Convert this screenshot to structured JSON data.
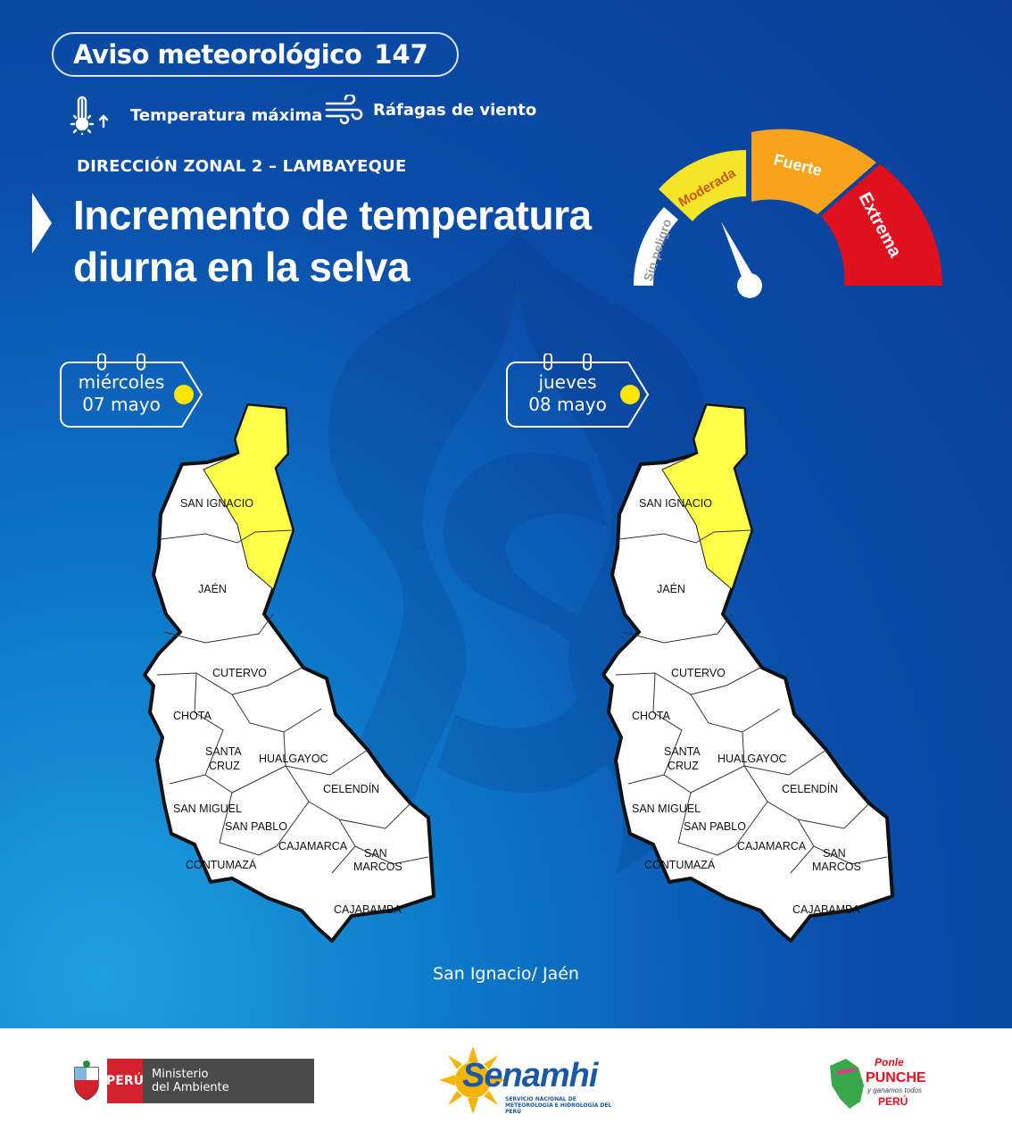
{
  "header": {
    "title": "Aviso meteorológico",
    "number": "147"
  },
  "legend": [
    {
      "icon": "thermometer-up-icon",
      "label": "Temperatura máxima"
    },
    {
      "icon": "wind-gust-icon",
      "label": "Ráfagas de viento"
    }
  ],
  "zone": "DIRECCIÓN ZONAL 2 – LAMBAYEQUE",
  "headline": {
    "line1": "Incremento de temperatura",
    "line2": "diurna en la selva"
  },
  "gauge": {
    "levels": [
      {
        "label": "Sin peligro",
        "color": "#ffffff"
      },
      {
        "label": "Moderada",
        "color": "#f5e52a"
      },
      {
        "label": "Fuerte",
        "color": "#f7a31c"
      },
      {
        "label": "Extrema",
        "color": "#e0101f"
      }
    ],
    "active_level": "Moderada"
  },
  "days": [
    {
      "weekday": "miércoles",
      "date": "07 mayo",
      "dot_color": "#ffe600"
    },
    {
      "weekday": "jueves",
      "date": "08 mayo",
      "dot_color": "#ffe600"
    }
  ],
  "map": {
    "highlight_color": "#ffff4a",
    "provinces": [
      "SAN IGNACIO",
      "JAÉN",
      "CUTERVO",
      "CHOTA",
      "SANTA",
      "CRUZ",
      "HUALGAYOC",
      "CELENDÍN",
      "SAN MIGUEL",
      "SAN PABLO",
      "CAJAMARCA",
      "SAN",
      "MARCOS",
      "CONTUMAZÁ",
      "CAJABAMBA"
    ]
  },
  "caption": "San Ignacio/ Jaén",
  "footer": {
    "peru_label": "PERÚ",
    "ministry_line1": "Ministerio",
    "ministry_line2": "del Ambiente",
    "senamhi_name": "Senamhi",
    "senamhi_sub": "SERVICIO NACIONAL DE METEOROLOGÍA E HIDROLOGÍA DEL PERÚ",
    "ponle_line1": "Ponle",
    "ponle_line2": "PUNCHE",
    "ponle_line3": "y ganamos todos",
    "ponle_line4": "PERÚ"
  }
}
